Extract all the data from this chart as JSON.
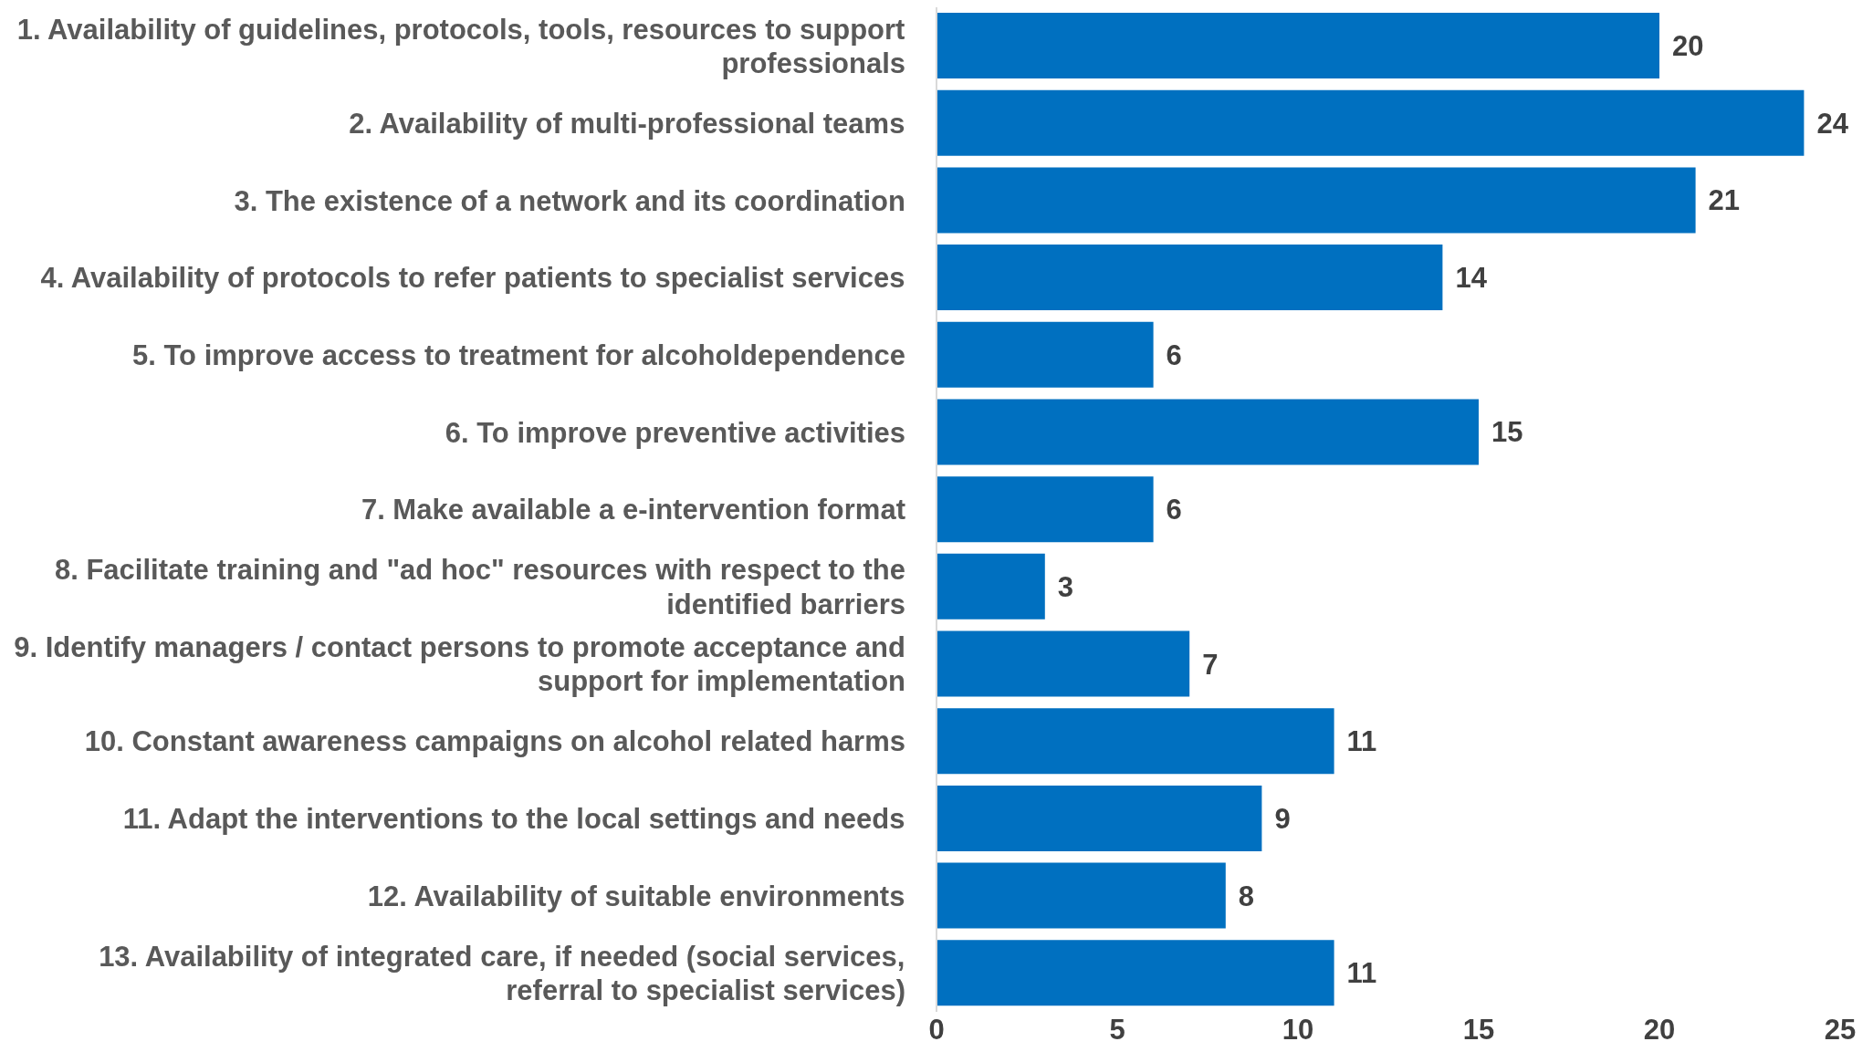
{
  "chart_data": {
    "type": "bar",
    "orientation": "horizontal",
    "categories": [
      "1. Availability of guidelines, protocols, tools, resources to support professionals",
      "2. Availability of multi-professional teams",
      "3. The existence of a network and its coordination",
      "4. Availability of protocols to refer patients to specialist services",
      "5. To improve access to treatment for alcoholdependence",
      "6. To improve preventive activities",
      "7. Make available a e-intervention format",
      "8. Facilitate training and \"ad hoc\" resources with respect to the identified barriers",
      "9. Identify managers / contact persons to promote acceptance and support for implementation",
      "10. Constant awareness campaigns on alcohol related harms",
      "11. Adapt the interventions to the local settings and needs",
      "12. Availability of suitable environments",
      "13. Availability of integrated care, if needed (social services, referral to specialist services)"
    ],
    "values": [
      20,
      24,
      21,
      14,
      6,
      15,
      6,
      3,
      7,
      11,
      9,
      8,
      11
    ],
    "color": "#0070c0",
    "xlim": [
      0,
      25
    ],
    "xticks": [
      0,
      5,
      10,
      15,
      20,
      25
    ],
    "data_labels": true,
    "grid": false
  }
}
